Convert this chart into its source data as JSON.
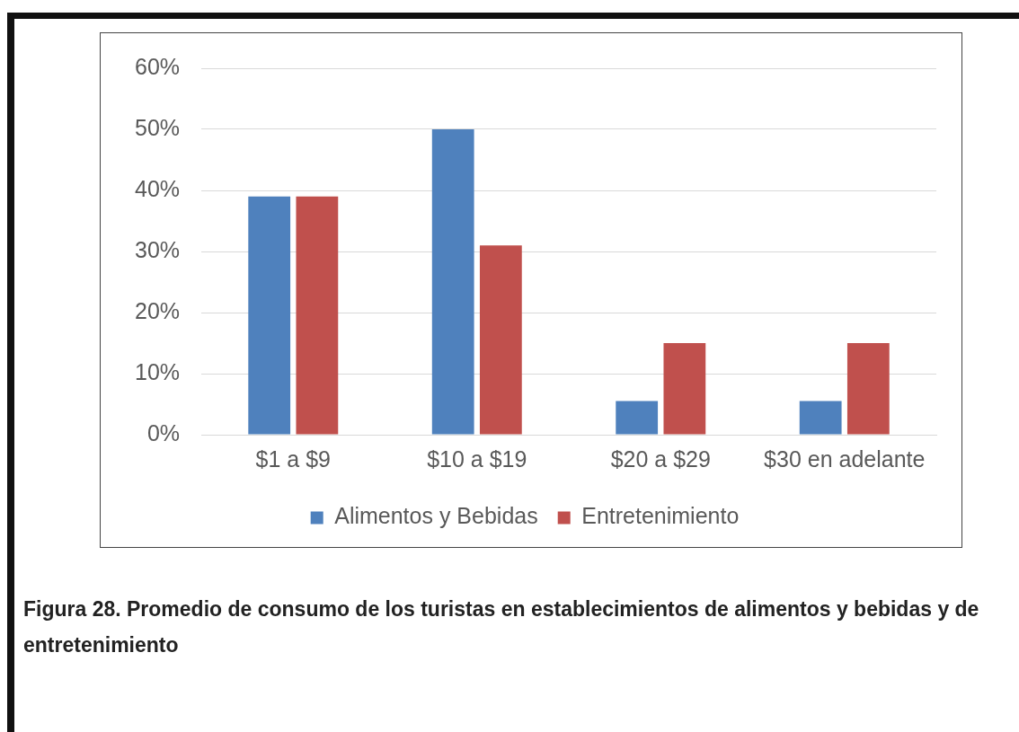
{
  "chart_data": {
    "type": "bar",
    "categories": [
      "$1 a $9",
      "$10 a $19",
      "$20 a $29",
      "$30 en adelante"
    ],
    "series": [
      {
        "name": "Alimentos y Bebidas",
        "color": "#4f81bd",
        "values": [
          39,
          50,
          5.5,
          5.5
        ]
      },
      {
        "name": "Entretenimiento",
        "color": "#c0504d",
        "values": [
          39,
          31,
          15,
          15
        ]
      }
    ],
    "ylim": [
      0,
      60
    ],
    "yticks": [
      {
        "value": 0,
        "label": "0%"
      },
      {
        "value": 10,
        "label": "10%"
      },
      {
        "value": 20,
        "label": "20%"
      },
      {
        "value": 30,
        "label": "30%"
      },
      {
        "value": 40,
        "label": "40%"
      },
      {
        "value": 50,
        "label": "50%"
      },
      {
        "value": 60,
        "label": "60%"
      }
    ],
    "grid": "y",
    "legend": "bottom",
    "annotations": [
      "Figura 28. Promedio de consumo de los turistas en establecimientos de alimentos y bebidas y de entretenimiento"
    ]
  }
}
